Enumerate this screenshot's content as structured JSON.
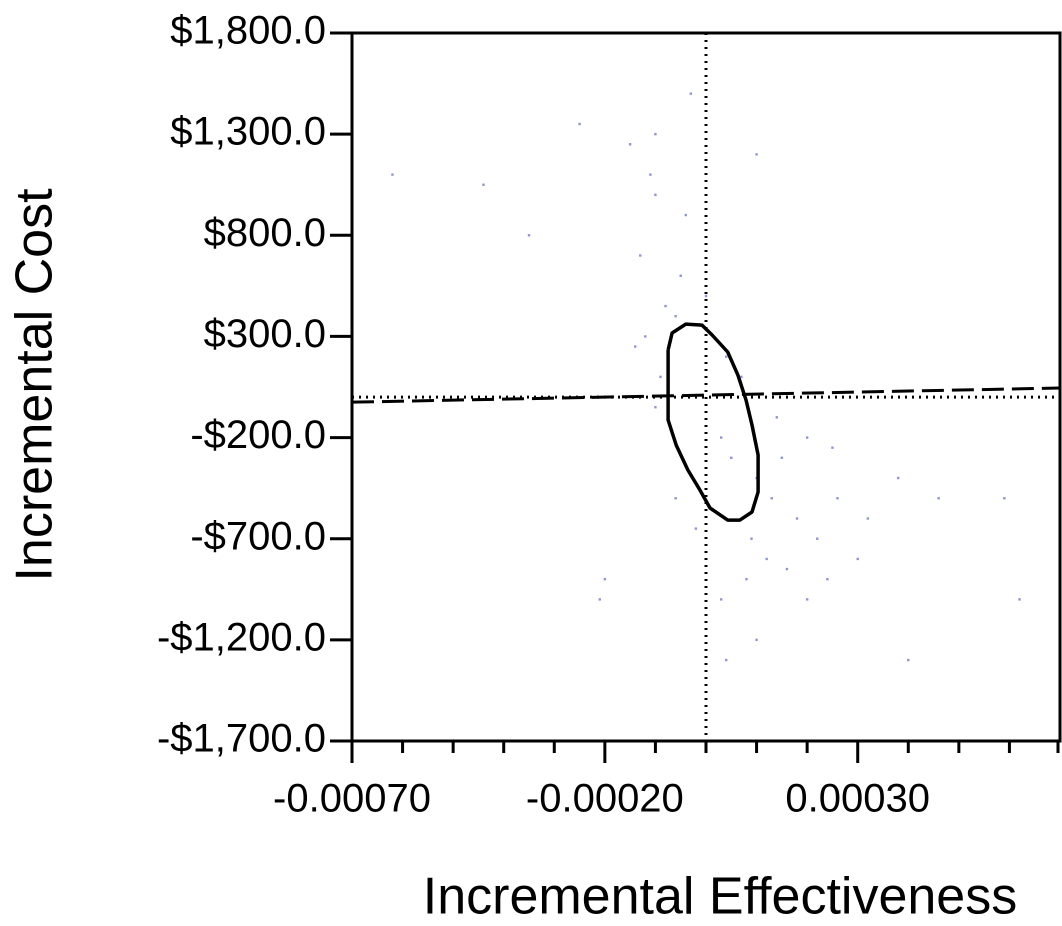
{
  "chart_data": {
    "type": "scatter",
    "xlabel": "Incremental Effectiveness",
    "ylabel": "Incremental Cost",
    "xlim": [
      -0.0007,
      0.0007
    ],
    "ylim": [
      -1700,
      1800
    ],
    "xticks": [
      {
        "value": -0.0007,
        "label": "-0.00070"
      },
      {
        "value": -0.0002,
        "label": "-0.00020"
      },
      {
        "value": 0.0003,
        "label": "0.00030"
      }
    ],
    "xminorticks": [
      -0.0006,
      -0.0005,
      -0.0004,
      -0.0003,
      -0.0001,
      0,
      0.0001,
      0.0002,
      0.0004,
      0.0005,
      0.0006,
      0.0007
    ],
    "yticks": [
      {
        "value": 1800,
        "label": "$1,800.0"
      },
      {
        "value": 1300,
        "label": "$1,300.0"
      },
      {
        "value": 800,
        "label": "$800.0"
      },
      {
        "value": 300,
        "label": "$300.0"
      },
      {
        "value": -200,
        "label": "-$200.0"
      },
      {
        "value": -700,
        "label": "-$700.0"
      },
      {
        "value": -1200,
        "label": "-$1,200.0"
      },
      {
        "value": -1700,
        "label": "-$1,700.0"
      }
    ],
    "zero_lines": {
      "x": 0,
      "y": 0
    },
    "reference_line": {
      "x": [
        -0.0007,
        0.0007
      ],
      "y": [
        -25,
        45
      ]
    },
    "points": {
      "color": "#8f96cf",
      "x": [
        -4e-05,
        -0.0001,
        -3e-05,
        -0.0001,
        -0.00025,
        -0.00044,
        -0.00062,
        -0.00035,
        -0.00013,
        -5e-05,
        -8e-05,
        -0.00012,
        0.0,
        4e-05,
        -9e-05,
        -0.0001,
        5e-05,
        0.0001,
        0.00013,
        0.00018,
        0.00022,
        0.00026,
        0.00032,
        0.00038,
        0.00046,
        0.00012,
        8e-05,
        3e-05,
        0.0001,
        4e-05,
        0.0,
        0.0002,
        0.00015,
        0.0002,
        0.00025,
        -2e-05,
        -6e-05,
        0.00062,
        0.0004,
        -0.0002,
        -0.00021,
        0.00059,
        -0.00015,
        0.0001,
        -0.00014,
        -0.00011,
        3e-05,
        7e-05,
        0.00014,
        -6e-05,
        9e-05,
        0.00016,
        0.00024,
        0.0003
      ],
      "y": [
        900,
        1000,
        1500,
        1300,
        1350,
        1050,
        1100,
        800,
        700,
        600,
        450,
        300,
        500,
        200,
        100,
        -50,
        -300,
        -400,
        -500,
        -600,
        -700,
        -500,
        -600,
        -400,
        -500,
        -800,
        -900,
        -1000,
        -1200,
        -1300,
        -1700,
        -1000,
        -300,
        -200,
        -250,
        -650,
        -500,
        -1000,
        -1300,
        -900,
        -1000,
        -500,
        1250,
        1200,
        250,
        1100,
        -200,
        100,
        -100,
        400,
        -700,
        -850,
        -900,
        -800
      ]
    },
    "contour": {
      "x": [
        -7.5e-05,
        -6.7e-05,
        -4e-05,
        -8e-06,
        1.2e-05,
        4.3e-05,
        6.3e-05,
        7.9e-05,
        9.1e-05,
        0.000103,
        0.000103,
        9.1e-05,
        6.7e-05,
        4.3e-05,
        8e-06,
        -1.2e-05,
        -3.6e-05,
        -5.9e-05,
        -7.5e-05,
        -7.5e-05,
        -7.5e-05
      ],
      "y": [
        233,
        317,
        361,
        356,
        307,
        223,
        109,
        -14,
        -138,
        -286,
        -469,
        -568,
        -608,
        -608,
        -548,
        -459,
        -360,
        -237,
        -113,
        60,
        233
      ]
    }
  }
}
